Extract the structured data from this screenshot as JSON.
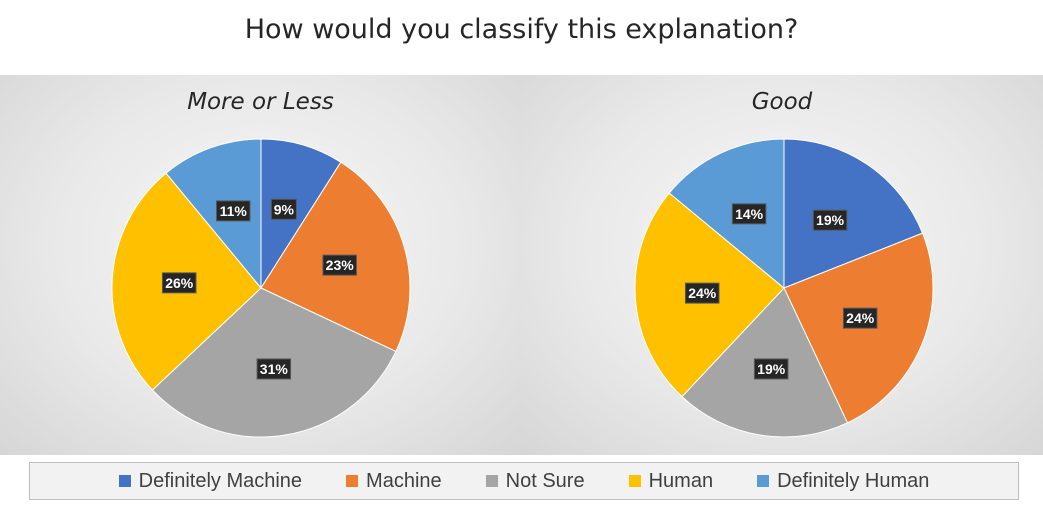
{
  "title": "How would you classify this explanation?",
  "colors": {
    "Definitely Machine": "#4472c4",
    "Machine": "#ed7d31",
    "Not Sure": "#a5a5a5",
    "Human": "#ffc000",
    "Definitely Human": "#5b9bd5"
  },
  "chart_data": [
    {
      "type": "pie",
      "title": "More or Less",
      "categories": [
        "Definitely Machine",
        "Machine",
        "Not Sure",
        "Human",
        "Definitely Human"
      ],
      "values": [
        9,
        23,
        31,
        26,
        11
      ],
      "labels": [
        "9%",
        "23%",
        "31%",
        "26%",
        "11%"
      ]
    },
    {
      "type": "pie",
      "title": "Good",
      "categories": [
        "Definitely Machine",
        "Machine",
        "Not Sure",
        "Human",
        "Definitely Human"
      ],
      "values": [
        19,
        24,
        19,
        24,
        14
      ],
      "labels": [
        "19%",
        "24%",
        "19%",
        "24%",
        "14%"
      ]
    }
  ],
  "legend": [
    "Definitely Machine",
    "Machine",
    "Not Sure",
    "Human",
    "Definitely Human"
  ]
}
